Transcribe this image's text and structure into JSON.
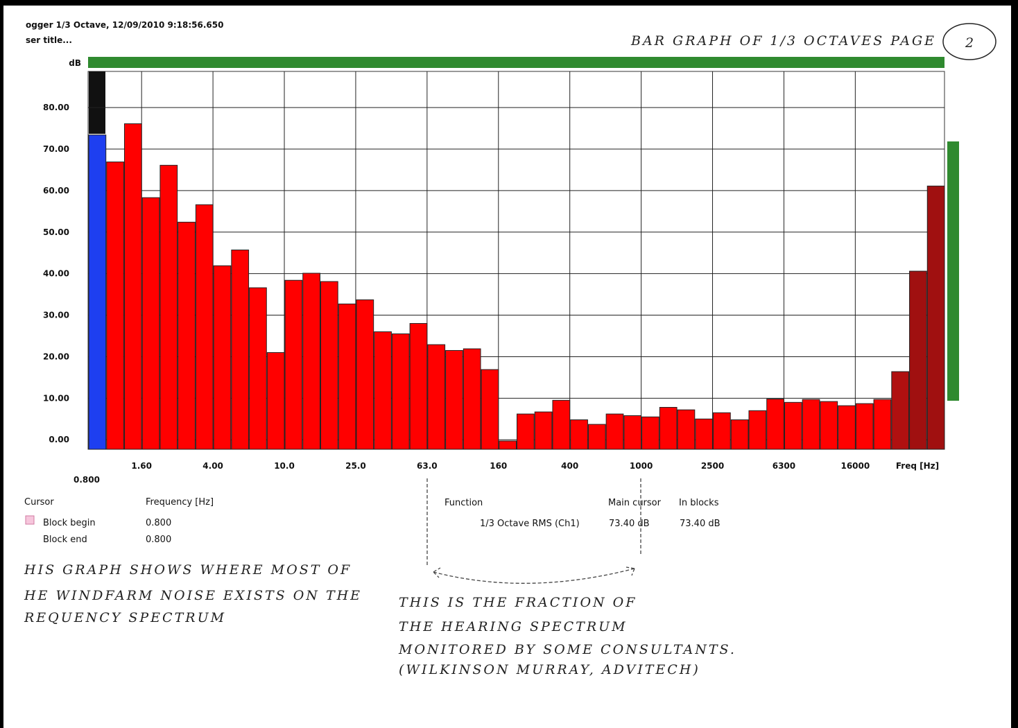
{
  "header": {
    "title": "ogger 1/3 Octave, 12/09/2010 9:18:56.650",
    "subtitle": "ser title..."
  },
  "chart_data": {
    "type": "bar",
    "y_label": "dB",
    "x_label": "Freq [Hz]",
    "x_start_label": "0.800",
    "categories": [
      null,
      null,
      null,
      "1.60",
      null,
      null,
      null,
      "4.00",
      null,
      null,
      null,
      "10.0",
      null,
      null,
      null,
      "25.0",
      null,
      null,
      null,
      "63.0",
      null,
      null,
      null,
      "160",
      null,
      null,
      null,
      "400",
      null,
      null,
      null,
      "1000",
      null,
      null,
      null,
      "2500",
      null,
      null,
      null,
      "6300",
      null,
      null,
      null,
      "16000",
      null,
      null,
      null,
      null
    ],
    "values": [
      73.4,
      66.9,
      76.1,
      58.3,
      66.1,
      52.4,
      56.6,
      41.9,
      45.7,
      36.6,
      21.0,
      38.4,
      40.1,
      38.1,
      32.7,
      33.7,
      26.0,
      25.5,
      28.0,
      22.9,
      21.5,
      21.9,
      16.9,
      -0.3,
      6.2,
      6.7,
      9.5,
      4.8,
      3.7,
      6.2,
      5.8,
      5.5,
      7.8,
      7.2,
      5.0,
      6.5,
      4.8,
      7.0,
      9.8,
      9.0,
      9.7,
      9.2,
      8.2,
      8.7,
      9.7,
      16.4,
      40.6,
      61.1
    ],
    "colors": [
      "#1e3ff0",
      "#ff0000",
      "#ff0000",
      "#ff0000",
      "#ff0000",
      "#ff0000",
      "#ff0000",
      "#ff0000",
      "#ff0000",
      "#ff0000",
      "#ff0000",
      "#ff0000",
      "#ff0000",
      "#ff0000",
      "#ff0000",
      "#ff0000",
      "#ff0000",
      "#ff0000",
      "#ff0000",
      "#ff0000",
      "#ff0000",
      "#ff0000",
      "#ff0000",
      "#ff0000",
      "#ff0000",
      "#ff0000",
      "#ff0000",
      "#ff0000",
      "#ff0000",
      "#ff0000",
      "#ff0000",
      "#ff0000",
      "#ff0000",
      "#ff0000",
      "#ff0000",
      "#ff0000",
      "#ff0000",
      "#ff0000",
      "#ff0000",
      "#ff0000",
      "#ff0000",
      "#ff0000",
      "#ff0000",
      "#ff0000",
      "#ff0000",
      "#b01010",
      "#a01010",
      "#a01010"
    ],
    "ylim": [
      -2.3,
      88.7
    ],
    "yticks": [
      {
        "value": 0,
        "label": "0.00"
      },
      {
        "value": 10,
        "label": "10.00"
      },
      {
        "value": 20,
        "label": "20.00"
      },
      {
        "value": 30,
        "label": "30.00"
      },
      {
        "value": 40,
        "label": "40.00"
      },
      {
        "value": 50,
        "label": "50.00"
      },
      {
        "value": 60,
        "label": "60.00"
      },
      {
        "value": 70,
        "label": "70.00"
      },
      {
        "value": 80,
        "label": "80.00"
      }
    ],
    "grid": true
  },
  "cursor_table": {
    "headers": [
      "Cursor",
      "Frequency [Hz]"
    ],
    "rows": [
      [
        "Block begin",
        "0.800"
      ],
      [
        "Block end",
        "0.800"
      ]
    ]
  },
  "function_table": {
    "headers": [
      "Function",
      "Main cursor",
      "In blocks"
    ],
    "rows": [
      [
        "1/3 Octave RMS (Ch1)",
        "73.40 dB",
        "73.40 dB"
      ]
    ]
  },
  "annotations": {
    "page_title": "BAR GRAPH OF 1/3 OCTAVES PAGE",
    "page_number": "2",
    "left": [
      "HIS GRAPH SHOWS WHERE MOST OF",
      "HE WINDFARM NOISE EXISTS ON THE",
      "REQUENCY SPECTRUM"
    ],
    "right": [
      "THIS IS THE FRACTION OF",
      "THE HEARING SPECTRUM",
      "MONITORED BY SOME CONSULTANTS.",
      "(WILKINSON MURRAY, ADVITECH)"
    ]
  }
}
